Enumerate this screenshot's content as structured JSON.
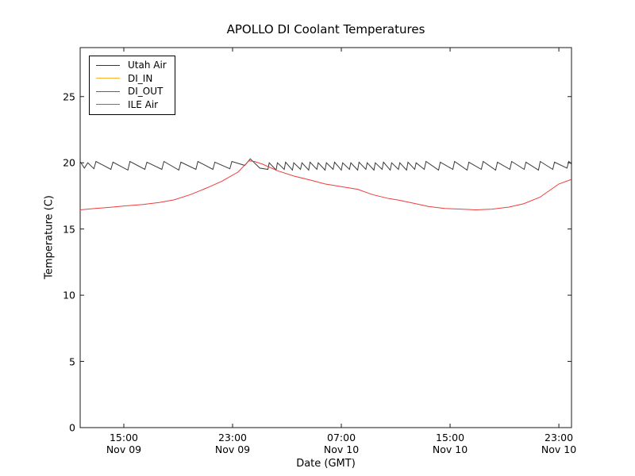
{
  "figure": {
    "title": "APOLLO DI Coolant Temperatures",
    "background_color": "#ffffff",
    "axis_color": "#1a1a1a"
  },
  "chart_data": {
    "type": "line",
    "title": "APOLLO DI Coolant Temperatures",
    "xlabel": "Date (GMT)",
    "ylabel": "Temperature (C)",
    "x_unit": "hours since Nov 09 12:00 GMT",
    "xlim": [
      -0.21,
      35.93
    ],
    "ylim": [
      0,
      28.7
    ],
    "grid": false,
    "legend_position": "upper-left",
    "x_ticks": [
      {
        "hour": 3,
        "time": "15:00",
        "date": "Nov 09"
      },
      {
        "hour": 11,
        "time": "23:00",
        "date": "Nov 09"
      },
      {
        "hour": 19,
        "time": "07:00",
        "date": "Nov 10"
      },
      {
        "hour": 27,
        "time": "15:00",
        "date": "Nov 10"
      },
      {
        "hour": 35,
        "time": "23:00",
        "date": "Nov 10"
      }
    ],
    "y_ticks": [
      0,
      5,
      10,
      15,
      20,
      25
    ],
    "series": [
      {
        "name": "Utah Air",
        "color": "#3a3a3a",
        "points": [
          [
            -0.21,
            20.1
          ],
          [
            0.1,
            19.6
          ],
          [
            0.35,
            20.0
          ],
          [
            0.8,
            19.55
          ],
          [
            0.95,
            20.1
          ],
          [
            2.05,
            19.5
          ],
          [
            2.2,
            20.05
          ],
          [
            3.3,
            19.45
          ],
          [
            3.45,
            20.1
          ],
          [
            4.55,
            19.5
          ],
          [
            4.7,
            20.05
          ],
          [
            5.8,
            19.5
          ],
          [
            5.95,
            20.1
          ],
          [
            7.05,
            19.45
          ],
          [
            7.2,
            20.05
          ],
          [
            8.3,
            19.5
          ],
          [
            8.45,
            20.1
          ],
          [
            9.55,
            19.5
          ],
          [
            9.7,
            20.05
          ],
          [
            10.8,
            19.55
          ],
          [
            10.95,
            20.1
          ],
          [
            11.9,
            19.8
          ],
          [
            12.3,
            20.3
          ],
          [
            13.0,
            19.6
          ],
          [
            13.6,
            19.5
          ],
          [
            13.7,
            20.0
          ],
          [
            14.2,
            19.45
          ],
          [
            14.3,
            20.0
          ],
          [
            14.8,
            19.5
          ],
          [
            14.9,
            20.05
          ],
          [
            15.4,
            19.45
          ],
          [
            15.5,
            20.0
          ],
          [
            16.0,
            19.5
          ],
          [
            16.1,
            20.0
          ],
          [
            16.6,
            19.45
          ],
          [
            16.7,
            20.05
          ],
          [
            17.2,
            19.5
          ],
          [
            17.3,
            20.0
          ],
          [
            17.8,
            19.45
          ],
          [
            17.9,
            20.0
          ],
          [
            18.4,
            19.5
          ],
          [
            18.5,
            20.05
          ],
          [
            19.0,
            19.45
          ],
          [
            19.1,
            20.0
          ],
          [
            19.6,
            19.5
          ],
          [
            19.7,
            20.0
          ],
          [
            20.2,
            19.45
          ],
          [
            20.3,
            20.05
          ],
          [
            20.8,
            19.5
          ],
          [
            20.9,
            20.0
          ],
          [
            21.4,
            19.45
          ],
          [
            21.5,
            20.0
          ],
          [
            22.0,
            19.5
          ],
          [
            22.1,
            20.05
          ],
          [
            22.6,
            19.45
          ],
          [
            22.7,
            20.0
          ],
          [
            23.2,
            19.5
          ],
          [
            23.3,
            20.0
          ],
          [
            23.8,
            19.45
          ],
          [
            23.9,
            20.05
          ],
          [
            24.4,
            19.5
          ],
          [
            24.5,
            20.0
          ],
          [
            25.1,
            19.5
          ],
          [
            25.23,
            20.1
          ],
          [
            26.15,
            19.45
          ],
          [
            26.28,
            20.05
          ],
          [
            27.2,
            19.5
          ],
          [
            27.33,
            20.1
          ],
          [
            28.25,
            19.45
          ],
          [
            28.38,
            20.05
          ],
          [
            29.3,
            19.5
          ],
          [
            29.43,
            20.1
          ],
          [
            30.35,
            19.45
          ],
          [
            30.48,
            20.05
          ],
          [
            31.4,
            19.5
          ],
          [
            31.53,
            20.1
          ],
          [
            32.45,
            19.5
          ],
          [
            32.58,
            20.05
          ],
          [
            33.5,
            19.45
          ],
          [
            33.63,
            20.1
          ],
          [
            34.55,
            19.5
          ],
          [
            34.68,
            20.05
          ],
          [
            35.6,
            19.6
          ],
          [
            35.73,
            20.1
          ],
          [
            35.93,
            19.9
          ]
        ]
      },
      {
        "name": "DI_IN",
        "color": "#fdb32b",
        "points": []
      },
      {
        "name": "DI_OUT",
        "color": "#9932cc",
        "points": []
      },
      {
        "name": "ILE Air",
        "color": "#f03c3c",
        "points": [
          [
            -0.21,
            16.45
          ],
          [
            0.9,
            16.55
          ],
          [
            2.1,
            16.65
          ],
          [
            3.2,
            16.75
          ],
          [
            4.4,
            16.85
          ],
          [
            5.6,
            17.0
          ],
          [
            6.7,
            17.2
          ],
          [
            7.9,
            17.6
          ],
          [
            9.1,
            18.1
          ],
          [
            10.2,
            18.6
          ],
          [
            11.4,
            19.3
          ],
          [
            12.2,
            20.15
          ],
          [
            12.6,
            20.1
          ],
          [
            13.2,
            19.9
          ],
          [
            14.3,
            19.4
          ],
          [
            15.5,
            19.0
          ],
          [
            16.7,
            18.7
          ],
          [
            17.8,
            18.4
          ],
          [
            19.0,
            18.2
          ],
          [
            20.2,
            18.0
          ],
          [
            21.3,
            17.6
          ],
          [
            22.5,
            17.3
          ],
          [
            23.1,
            17.2
          ],
          [
            24.3,
            16.95
          ],
          [
            25.4,
            16.7
          ],
          [
            26.6,
            16.55
          ],
          [
            27.8,
            16.5
          ],
          [
            28.9,
            16.45
          ],
          [
            30.1,
            16.5
          ],
          [
            31.3,
            16.65
          ],
          [
            32.4,
            16.9
          ],
          [
            33.6,
            17.4
          ],
          [
            35.0,
            18.4
          ],
          [
            35.93,
            18.75
          ]
        ]
      }
    ]
  }
}
